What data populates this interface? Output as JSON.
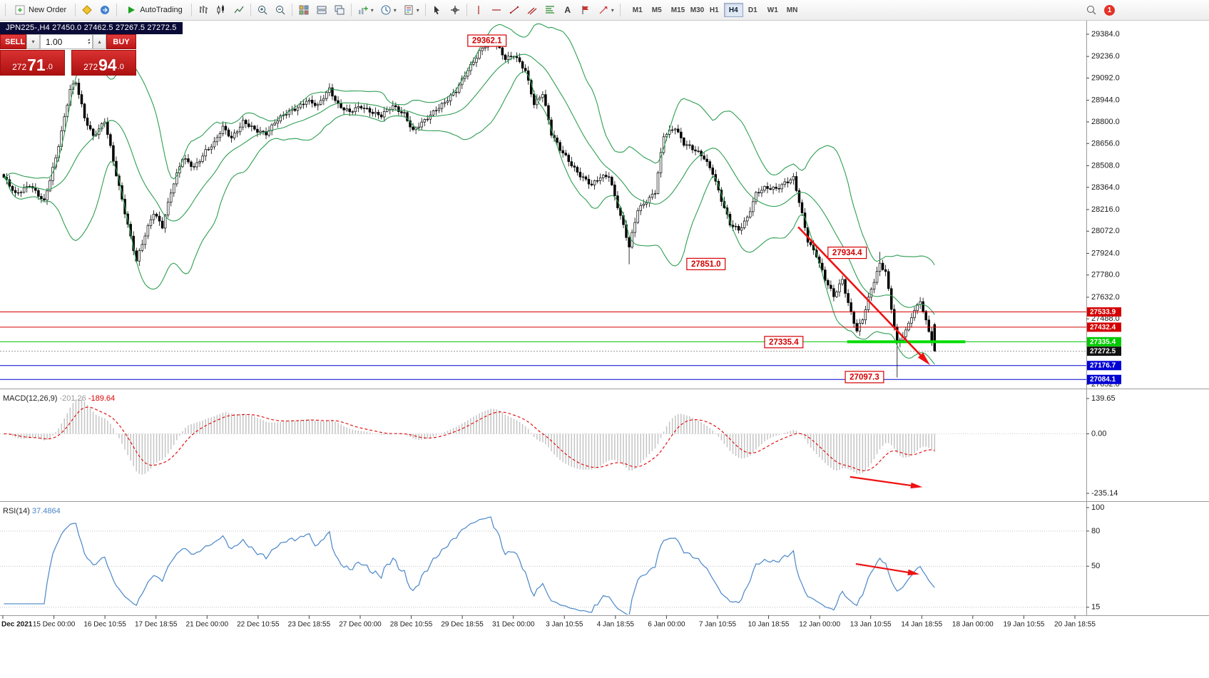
{
  "toolbar": {
    "new_order": "New Order",
    "autotrading": "AutoTrading",
    "timeframes": [
      "M1",
      "M5",
      "M15",
      "M30",
      "H1",
      "H4",
      "D1",
      "W1",
      "MN"
    ],
    "active_timeframe": "H4",
    "notification_count": "1"
  },
  "icons": {
    "caret_down": "▾",
    "caret_up": "▴",
    "text_tool": "A"
  },
  "chart_title": "JPN225-,H4 27450.0 27462.5 27267.5 27272.5",
  "one_click": {
    "sell_label": "SELL",
    "buy_label": "BUY",
    "volume": "1.00",
    "sell_price": {
      "prefix": "272",
      "big": "71",
      "suffix": ".0",
      "full": "27271.0"
    },
    "buy_price": {
      "prefix": "272",
      "big": "94",
      "suffix": ".0",
      "full": "27294.0"
    }
  },
  "chart_data": {
    "type": "candlestick",
    "symbol": "JPN225-",
    "timeframe": "H4",
    "ohlc": {
      "open": 27450.0,
      "high": 27462.5,
      "low": 27267.5,
      "close": 27272.5
    },
    "bar_count": 324,
    "colors": {
      "background": "#ffffff",
      "candle_border": "#000000",
      "candle_up": "#ffffff",
      "candle_down": "#000000",
      "separator": "#9b9b9b",
      "axis_text": "#1a1a1a"
    },
    "close_waypoints": [
      [
        0,
        28430
      ],
      [
        4,
        28310
      ],
      [
        9,
        28390
      ],
      [
        14,
        28260
      ],
      [
        18,
        28560
      ],
      [
        23,
        29020
      ],
      [
        25,
        29060
      ],
      [
        28,
        28820
      ],
      [
        31,
        28710
      ],
      [
        35,
        28810
      ],
      [
        39,
        28440
      ],
      [
        43,
        28120
      ],
      [
        46,
        27880
      ],
      [
        49,
        28040
      ],
      [
        52,
        28190
      ],
      [
        55,
        28110
      ],
      [
        58,
        28340
      ],
      [
        62,
        28550
      ],
      [
        66,
        28500
      ],
      [
        70,
        28610
      ],
      [
        73,
        28650
      ],
      [
        76,
        28760
      ],
      [
        79,
        28700
      ],
      [
        83,
        28800
      ],
      [
        87,
        28740
      ],
      [
        91,
        28730
      ],
      [
        94,
        28800
      ],
      [
        98,
        28850
      ],
      [
        102,
        28900
      ],
      [
        105,
        28950
      ],
      [
        109,
        28900
      ],
      [
        113,
        29020
      ],
      [
        116,
        28920
      ],
      [
        120,
        28860
      ],
      [
        124,
        28900
      ],
      [
        127,
        28880
      ],
      [
        131,
        28840
      ],
      [
        135,
        28900
      ],
      [
        139,
        28860
      ],
      [
        142,
        28740
      ],
      [
        146,
        28800
      ],
      [
        150,
        28890
      ],
      [
        154,
        28950
      ],
      [
        157,
        29000
      ],
      [
        161,
        29150
      ],
      [
        165,
        29270
      ],
      [
        169,
        29340
      ],
      [
        171,
        29310
      ],
      [
        174,
        29230
      ],
      [
        177,
        29250
      ],
      [
        181,
        29130
      ],
      [
        184,
        28920
      ],
      [
        187,
        29000
      ],
      [
        190,
        28720
      ],
      [
        193,
        28610
      ],
      [
        197,
        28520
      ],
      [
        200,
        28450
      ],
      [
        204,
        28370
      ],
      [
        207,
        28430
      ],
      [
        210,
        28450
      ],
      [
        214,
        28170
      ],
      [
        217,
        27960
      ],
      [
        220,
        28220
      ],
      [
        223,
        28280
      ],
      [
        226,
        28330
      ],
      [
        229,
        28700
      ],
      [
        233,
        28770
      ],
      [
        236,
        28660
      ],
      [
        240,
        28600
      ],
      [
        243,
        28560
      ],
      [
        246,
        28470
      ],
      [
        249,
        28280
      ],
      [
        252,
        28110
      ],
      [
        255,
        28080
      ],
      [
        258,
        28170
      ],
      [
        261,
        28320
      ],
      [
        264,
        28350
      ],
      [
        268,
        28360
      ],
      [
        271,
        28400
      ],
      [
        274,
        28420
      ],
      [
        276,
        28260
      ],
      [
        279,
        28010
      ],
      [
        282,
        27920
      ],
      [
        285,
        27750
      ],
      [
        288,
        27630
      ],
      [
        291,
        27750
      ],
      [
        293,
        27600
      ],
      [
        296,
        27410
      ],
      [
        298,
        27480
      ],
      [
        301,
        27680
      ],
      [
        304,
        27860
      ],
      [
        306,
        27810
      ],
      [
        308,
        27560
      ],
      [
        310,
        27310
      ],
      [
        313,
        27400
      ],
      [
        315,
        27510
      ],
      [
        318,
        27620
      ],
      [
        320,
        27470
      ],
      [
        323,
        27272.5
      ]
    ],
    "extreme_overrides": {
      "169": {
        "high": 29362.1
      },
      "217": {
        "low": 27851.0
      },
      "304": {
        "high": 27934.4
      },
      "310": {
        "low": 27097.3
      },
      "323": {
        "open": 27450.0,
        "high": 27462.5,
        "low": 27267.5,
        "close": 27272.5
      }
    },
    "indicators": {
      "bollinger": {
        "name": "Bollinger Bands",
        "period": 20,
        "deviation": 2,
        "color": "#2e9e52"
      },
      "macd": {
        "name": "MACD",
        "params": "(12,26,9)",
        "value": "-201.26",
        "signal": "-189.64",
        "axis_labels": [
          "139.65",
          "0.00",
          "-235.14"
        ],
        "histogram_color": "#c4c4c4",
        "signal_color": "#e00000"
      },
      "rsi": {
        "name": "RSI",
        "params": "(14)",
        "value": "37.4864",
        "levels": [
          80,
          50,
          15
        ],
        "axis_max_label": "100",
        "line_color": "#4a86c8"
      }
    },
    "price_axis": {
      "ticks": [
        29384.0,
        29236.0,
        29092.0,
        28944.0,
        28800.0,
        28656.0,
        28508.0,
        28364.0,
        28216.0,
        28072.0,
        27924.0,
        27780.0,
        27632.0,
        27488.0,
        27052.0
      ]
    },
    "levels": [
      {
        "price": 27533.9,
        "color": "#d40000",
        "style": "solid"
      },
      {
        "price": 27432.4,
        "color": "#d40000",
        "style": "solid"
      },
      {
        "price": 27335.4,
        "color": "#00c800",
        "style": "solid"
      },
      {
        "price": 27272.5,
        "color": "#999999",
        "style": "dotted",
        "tag_color": "#111111"
      },
      {
        "price": 27176.7,
        "color": "#0000d4",
        "style": "solid"
      },
      {
        "price": 27084.1,
        "color": "#0000d4",
        "style": "solid"
      }
    ],
    "support_segment": {
      "price": 27335.4,
      "from_bar": 293,
      "to_bar": 334,
      "color": "#00dd00",
      "width": 4
    },
    "price_labels": [
      {
        "text": "29362.1",
        "bar": 168,
        "price": 29341
      },
      {
        "text": "27851.0",
        "bar": 244,
        "price": 27853
      },
      {
        "text": "27934.4",
        "bar": 293,
        "price": 27928
      },
      {
        "text": "27335.4",
        "bar": 271,
        "price": 27333
      },
      {
        "text": "27097.3",
        "bar": 299,
        "price": 27100
      }
    ],
    "arrows": [
      {
        "panel": "main",
        "from": [
          276,
          28100
        ],
        "to": [
          320,
          27215
        ],
        "color": "#ee1111",
        "width": 2.6
      },
      {
        "panel": "macd",
        "from": [
          294,
          -170
        ],
        "to": [
          317,
          -207
        ],
        "color": "#ee1111",
        "width": 2.2
      },
      {
        "panel": "rsi",
        "from": [
          296,
          52
        ],
        "to": [
          316,
          44
        ],
        "color": "#ee1111",
        "width": 2.2
      }
    ],
    "time_axis": [
      "Dec 2021",
      "15 Dec 00:00",
      "16 Dec 10:55",
      "17 Dec 18:55",
      "21 Dec 00:00",
      "22 Dec 10:55",
      "23 Dec 18:55",
      "27 Dec 00:00",
      "28 Dec 10:55",
      "29 Dec 18:55",
      "31 Dec 00:00",
      "3 Jan 10:55",
      "4 Jan 18:55",
      "6 Jan 00:00",
      "7 Jan 10:55",
      "10 Jan 18:55",
      "12 Jan 00:00",
      "13 Jan 10:55",
      "14 Jan 18:55",
      "18 Jan 00:00",
      "19 Jan 10:55",
      "20 Jan 18:55"
    ]
  }
}
